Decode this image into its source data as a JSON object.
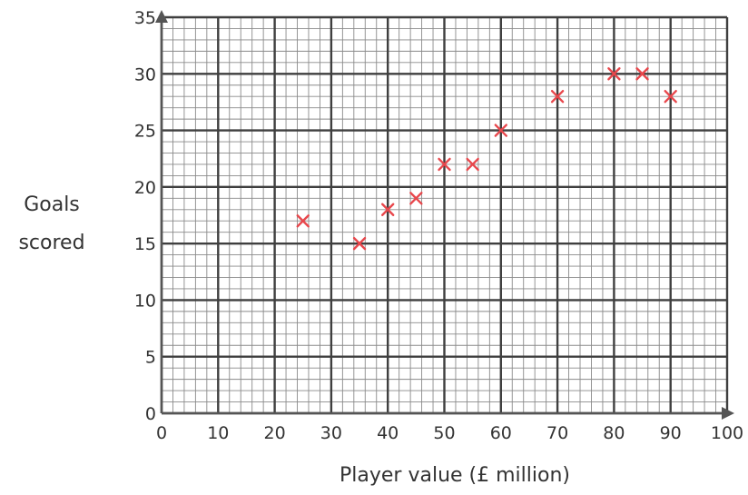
{
  "chart_data": {
    "type": "scatter",
    "xlabel": "Player value (£ million)",
    "ylabel_lines": [
      "Goals",
      "scored"
    ],
    "xlim": [
      0,
      100
    ],
    "ylim": [
      0,
      35
    ],
    "x_ticks": [
      0,
      10,
      20,
      30,
      40,
      50,
      60,
      70,
      80,
      90,
      100
    ],
    "y_ticks": [
      0,
      5,
      10,
      15,
      20,
      25,
      30,
      35
    ],
    "x_minor_step": 2,
    "y_minor_step": 1,
    "grid": true,
    "marker": "x",
    "colors": {
      "marker": "#e8474c",
      "major_grid": "#3f3f3f",
      "minor_grid": "#8a8a8a",
      "text": "#333333"
    },
    "points": [
      {
        "x": 25,
        "y": 17
      },
      {
        "x": 35,
        "y": 15
      },
      {
        "x": 40,
        "y": 18
      },
      {
        "x": 45,
        "y": 19
      },
      {
        "x": 50,
        "y": 22
      },
      {
        "x": 55,
        "y": 22
      },
      {
        "x": 60,
        "y": 25
      },
      {
        "x": 70,
        "y": 28
      },
      {
        "x": 80,
        "y": 30
      },
      {
        "x": 85,
        "y": 30
      },
      {
        "x": 90,
        "y": 28
      }
    ]
  }
}
